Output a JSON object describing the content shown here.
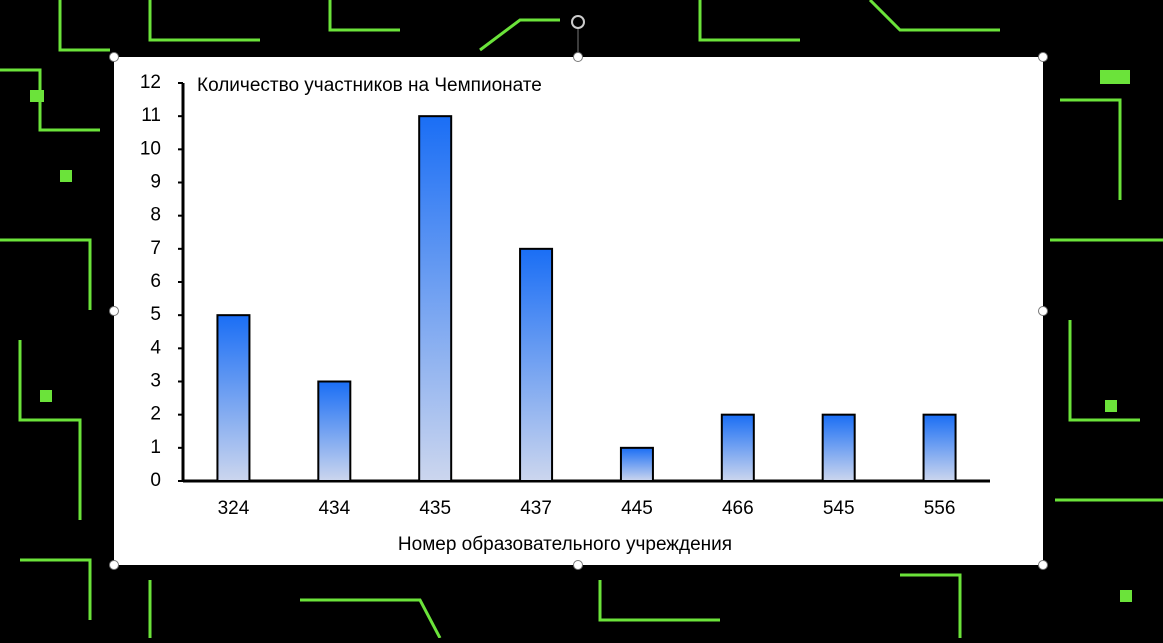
{
  "chart_data": {
    "type": "bar",
    "title": "Количество участников на Чемпионате",
    "x_label": "Номер образовательного учреждения",
    "categories": [
      "324",
      "434",
      "435",
      "437",
      "445",
      "466",
      "545",
      "556"
    ],
    "values": [
      5,
      3,
      11,
      7,
      1,
      2,
      2,
      2
    ],
    "color": "#1a6ef5",
    "ylim": [
      0,
      12
    ],
    "yticks": [
      0,
      1,
      2,
      3,
      4,
      5,
      6,
      7,
      8,
      9,
      10,
      11,
      12
    ],
    "grid": false
  }
}
